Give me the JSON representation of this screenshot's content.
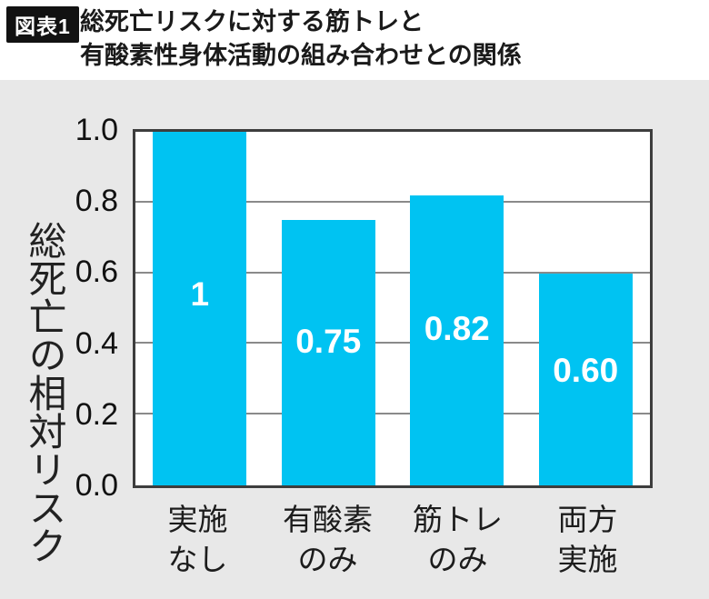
{
  "header": {
    "badge": "図表1",
    "title_line1": "総死亡リスクに対する筋トレと",
    "title_line2": "有酸素性身体活動の組み合わせとの関係"
  },
  "chart_data": {
    "type": "bar",
    "categories": [
      "実施\nなし",
      "有酸素\nのみ",
      "筋トレ\nのみ",
      "両方\n実施"
    ],
    "values": [
      1.0,
      0.75,
      0.82,
      0.6
    ],
    "value_labels": [
      "1",
      "0.75",
      "0.82",
      "0.60"
    ],
    "title": "総死亡リスクに対する筋トレと有酸素性身体活動の組み合わせとの関係",
    "xlabel": "",
    "ylabel": "総死亡の相対リスク",
    "ylim": [
      0,
      1.0
    ],
    "y_ticks": [
      "1.0",
      "0.8",
      "0.6",
      "0.4",
      "0.2",
      "0.0"
    ],
    "grid_values": [
      0.2,
      0.4,
      0.6,
      0.8
    ],
    "grid": true,
    "legend": false,
    "bar_color": "#00c3f2",
    "value_label_color": "#ffffff",
    "panel_background": "#e8e8e8",
    "plot_background": "#ffffff"
  }
}
